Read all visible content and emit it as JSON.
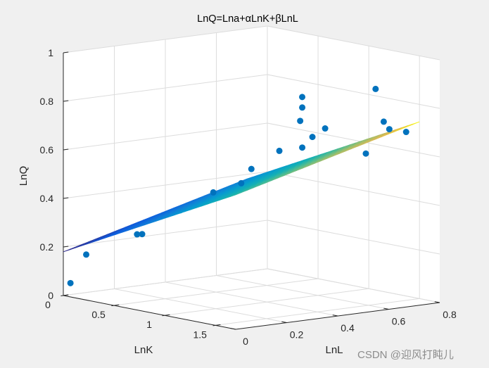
{
  "chart_data": {
    "type": "scatter",
    "title": "LnQ=Lna+αLnK+βLnL",
    "xlabel": "LnK",
    "ylabel": "LnL",
    "zlabel": "LnQ",
    "xlim": [
      0,
      1.7
    ],
    "ylim": [
      0,
      0.8
    ],
    "zlim": [
      0,
      1
    ],
    "x_ticks": [
      "0",
      "0.5",
      "1",
      "1.5"
    ],
    "y_ticks": [
      "0",
      "0.2",
      "0.4",
      "0.6",
      "0.8"
    ],
    "z_ticks": [
      "0",
      "0.2",
      "0.4",
      "0.6",
      "0.8",
      "1"
    ],
    "grid": true,
    "series": [
      {
        "type": "scatter3",
        "color": "#0072BD",
        "points": [
          [
            0.02,
            0.02,
            0.05
          ],
          [
            0.1,
            0.05,
            0.17
          ],
          [
            0.35,
            0.15,
            0.26
          ],
          [
            0.4,
            0.15,
            0.265
          ],
          [
            0.6,
            0.22,
            0.37
          ],
          [
            0.85,
            0.25,
            0.46
          ],
          [
            1.05,
            0.28,
            0.51
          ],
          [
            1.1,
            0.3,
            0.57
          ],
          [
            1.25,
            0.35,
            0.65
          ],
          [
            1.35,
            0.4,
            0.665
          ],
          [
            1.4,
            0.42,
            0.71
          ],
          [
            1.45,
            0.45,
            0.745
          ],
          [
            1.38,
            0.38,
            0.78
          ],
          [
            1.35,
            0.4,
            0.83
          ],
          [
            1.4,
            0.38,
            0.88
          ],
          [
            1.52,
            0.62,
            0.89
          ],
          [
            1.55,
            0.64,
            0.755
          ],
          [
            1.58,
            0.65,
            0.725
          ],
          [
            1.62,
            0.7,
            0.71
          ],
          [
            1.6,
            0.55,
            0.64
          ]
        ]
      },
      {
        "type": "mesh",
        "colormap": "parula",
        "x_range": [
          0,
          1.7
        ],
        "y_range": [
          0,
          0.72
        ],
        "fit": {
          "lna": 0.18,
          "alpha": 0.22,
          "beta": 0.28
        }
      }
    ]
  },
  "watermark": "CSDN @迎风打盹儿"
}
